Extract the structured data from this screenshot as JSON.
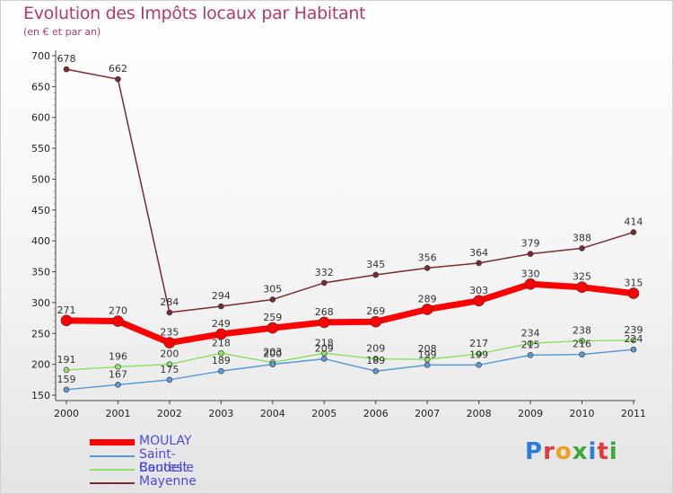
{
  "header": {
    "title": "Evolution des Impôts locaux par Habitant",
    "subtitle": "(en € et par an)"
  },
  "logo": {
    "text": "Proxiti"
  },
  "chart_data": {
    "type": "line",
    "x": [
      "2000",
      "2001",
      "2002",
      "2003",
      "2004",
      "2005",
      "2006",
      "2007",
      "2008",
      "2009",
      "2010",
      "2011"
    ],
    "ylim": [
      150,
      700
    ],
    "yticks": [
      150,
      200,
      250,
      300,
      350,
      400,
      450,
      500,
      550,
      600,
      650,
      700
    ],
    "grid": false,
    "legend_position": "bottom-left",
    "series": [
      {
        "name": "Mayenne",
        "color": "#7a2a34",
        "values": [
          678,
          662,
          284,
          294,
          305,
          332,
          345,
          356,
          364,
          379,
          388,
          414
        ]
      },
      {
        "name": "Contest",
        "color": "#90e06a",
        "values": [
          191,
          196,
          200,
          218,
          203,
          218,
          209,
          208,
          217,
          234,
          238,
          239
        ]
      },
      {
        "name": "Saint-Baudelle",
        "color": "#5b9bd5",
        "values": [
          159,
          167,
          175,
          189,
          200,
          209,
          189,
          199,
          199,
          215,
          216,
          224
        ]
      },
      {
        "name": "MOULAY",
        "color": "#ff0000",
        "values": [
          271,
          270,
          235,
          249,
          259,
          268,
          269,
          289,
          303,
          330,
          325,
          315
        ]
      }
    ],
    "legend_order": [
      "MOULAY",
      "Saint-Baudelle",
      "Contest",
      "Mayenne"
    ]
  }
}
